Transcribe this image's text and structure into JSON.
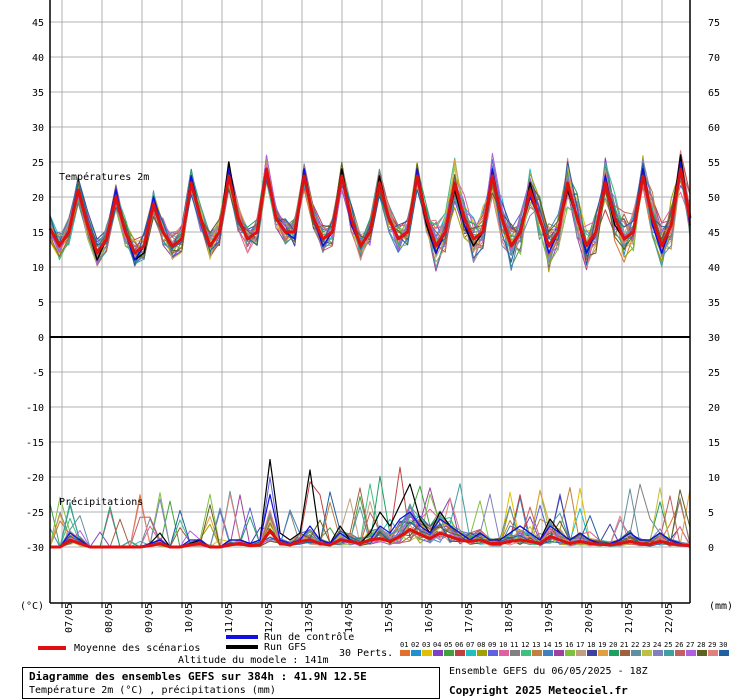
{
  "chart_data": {
    "type": "line",
    "panels": [
      {
        "name": "Températures 2m",
        "left_axis_label": "(°C)"
      },
      {
        "name": "Précipitations",
        "right_axis_label": "(mm)"
      }
    ],
    "left_axis_ticks": [
      "45",
      "40",
      "35",
      "30",
      "25",
      "20",
      "15",
      "10",
      "5",
      "0",
      "-5",
      "-10",
      "-15",
      "-20",
      "-25",
      "-30"
    ],
    "right_axis_temp_ticks": [
      "75",
      "70",
      "65",
      "60",
      "55",
      "50",
      "45",
      "40",
      "35",
      "30"
    ],
    "right_axis_precip_ticks": [
      "25",
      "20",
      "15",
      "10",
      "5",
      "0"
    ],
    "x_categories": [
      "07/05",
      "08/05",
      "09/05",
      "10/05",
      "11/05",
      "12/05",
      "13/05",
      "14/05",
      "15/05",
      "16/05",
      "17/05",
      "18/05",
      "19/05",
      "20/05",
      "21/05",
      "22/05"
    ],
    "temperature_mean": [
      15.5,
      13,
      15,
      21,
      16,
      12,
      14,
      20,
      15,
      12,
      13,
      19,
      15,
      13,
      14,
      22,
      17,
      13,
      15,
      23,
      17,
      14,
      15,
      24,
      17,
      15,
      15,
      23,
      17,
      14,
      15,
      23,
      17,
      13,
      15,
      22,
      17,
      14,
      15,
      23,
      17,
      13,
      15,
      22,
      17,
      14,
      15,
      23,
      17,
      13,
      15,
      21,
      17,
      13,
      15,
      22,
      17,
      13,
      15,
      22,
      17,
      14,
      15,
      23,
      17,
      13,
      16,
      24,
      17
    ],
    "temperature_control": [
      15.5,
      13,
      15,
      21,
      16,
      12,
      14,
      21,
      15,
      11,
      13,
      20,
      15,
      13,
      14,
      23,
      17,
      13,
      15,
      24,
      17,
      14,
      15,
      24,
      17,
      15,
      14,
      24,
      17,
      13,
      15,
      23,
      16,
      13,
      15,
      22,
      17,
      14,
      15,
      24,
      17,
      12,
      15,
      22,
      16,
      14,
      15,
      24,
      17,
      13,
      15,
      20,
      17,
      12,
      15,
      22,
      17,
      12,
      15,
      23,
      17,
      14,
      15,
      24,
      16,
      12,
      16,
      25,
      16
    ],
    "temperature_gfs": [
      15.5,
      13,
      15,
      21,
      16,
      11,
      14,
      20,
      15,
      11,
      12,
      19,
      15,
      13,
      14,
      23,
      17,
      13,
      15,
      25,
      17,
      14,
      15,
      24,
      17,
      15,
      15,
      24,
      17,
      14,
      15,
      24,
      17,
      13,
      15,
      23,
      17,
      14,
      15,
      23,
      16,
      12,
      15,
      21,
      16,
      13,
      15,
      23,
      17,
      13,
      15,
      22,
      17,
      13,
      15,
      21,
      17,
      12,
      15,
      22,
      16,
      14,
      15,
      24,
      17,
      13,
      16,
      26,
      16
    ],
    "precip_mean": [
      0,
      0,
      1,
      0.5,
      0,
      0,
      0,
      0,
      0,
      0,
      0.2,
      0.5,
      0,
      0,
      0.3,
      0.5,
      0,
      0,
      0.3,
      0.5,
      0.2,
      0.3,
      2.3,
      0.5,
      0.3,
      0.8,
      1.0,
      0.5,
      0.3,
      1.0,
      0.8,
      0.5,
      1.0,
      1.2,
      0.8,
      1.5,
      2.5,
      1.8,
      1.2,
      2.0,
      1.5,
      1.0,
      0.8,
      1.0,
      0.5,
      0.5,
      0.8,
      1.0,
      0.8,
      0.5,
      1.5,
      1.0,
      0.5,
      0.8,
      0.5,
      0.4,
      0.3,
      0.5,
      0.8,
      0.5,
      0.4,
      0.8,
      0.5,
      0.3,
      0.2
    ],
    "precip_control": [
      0,
      0,
      2,
      1,
      0,
      0,
      0,
      0,
      0,
      0,
      0.5,
      1,
      0,
      0,
      1,
      1,
      0,
      0,
      1,
      1,
      0.5,
      1,
      7.5,
      1,
      0.5,
      1,
      3,
      1,
      0.5,
      2,
      1,
      0.5,
      1,
      3,
      2,
      4,
      5,
      3,
      2,
      4,
      3,
      2,
      1,
      2,
      1,
      1,
      2,
      3,
      2,
      1,
      3,
      2,
      1,
      2,
      1,
      0.5,
      0.5,
      1,
      2,
      1,
      1,
      2,
      1,
      0.5,
      0
    ],
    "precip_gfs": [
      0,
      0,
      1,
      0.5,
      0,
      0,
      0,
      0,
      0,
      0,
      0.5,
      2,
      0,
      0,
      0.5,
      1,
      0,
      0,
      1,
      1,
      0.5,
      1,
      12.5,
      2,
      1,
      2,
      11,
      1,
      0.5,
      3,
      1,
      0.5,
      2,
      5,
      3,
      6,
      9,
      4,
      2,
      5,
      3,
      2,
      1,
      2,
      1,
      1,
      2,
      3,
      2,
      1,
      4,
      2,
      1,
      2,
      1,
      0.5,
      0.5,
      1,
      2,
      1,
      1,
      2,
      1,
      0.5,
      0
    ],
    "legend": {
      "mean_label": "Moyenne des scénarios",
      "control_label": "Run de contrôle",
      "gfs_label": "Run GFS",
      "perts_label": "30 Perts.",
      "pert_ids": [
        "01",
        "02",
        "03",
        "04",
        "05",
        "06",
        "07",
        "08",
        "09",
        "10",
        "11",
        "12",
        "13",
        "14",
        "15",
        "16",
        "17",
        "18",
        "19",
        "20",
        "21",
        "22",
        "23",
        "24",
        "25",
        "26",
        "27",
        "28",
        "29",
        "30"
      ],
      "pert_colors": [
        "#e07030",
        "#2090d0",
        "#e0c000",
        "#8040c0",
        "#40a040",
        "#c04040",
        "#20c0c0",
        "#a0a000",
        "#6060e0",
        "#e060a0",
        "#808080",
        "#40c080",
        "#c08040",
        "#4080c0",
        "#a040a0",
        "#80c040",
        "#c0a080",
        "#4040a0",
        "#e0a040",
        "#20a060",
        "#a06040",
        "#6090a0",
        "#c0c040",
        "#8080c0",
        "#40a0a0",
        "#c06060",
        "#b060e0",
        "#606020",
        "#e08080",
        "#2060a0"
      ]
    }
  },
  "title": "Diagramme des ensembles GEFS sur 384h : 41.9N 12.5E",
  "subtitle": "Température 2m (°C) , précipitations (mm)",
  "altitude": "Altitude du modele : 141m",
  "run_info": "Ensemble GEFS du 06/05/2025 - 18Z",
  "copyright": "Copyright 2025 Meteociel.fr",
  "colors": {
    "mean": "#e01010",
    "control": "#1010e0",
    "gfs": "#000000",
    "grid": "#b0b0b0"
  }
}
